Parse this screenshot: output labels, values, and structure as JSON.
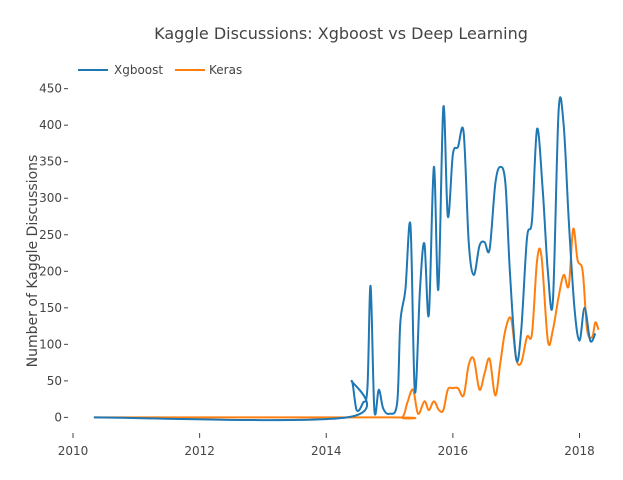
{
  "chart_data": {
    "type": "line",
    "title": "Kaggle Discussions: Xgboost vs Deep Learning",
    "xlabel": "",
    "ylabel": "Number of Kaggle Discussions",
    "xlim": [
      2010.0,
      2018.45
    ],
    "ylim": [
      -20,
      455
    ],
    "xticks": [
      2010,
      2012,
      2014,
      2016,
      2018
    ],
    "yticks": [
      0,
      50,
      100,
      150,
      200,
      250,
      300,
      350,
      400,
      450
    ],
    "grid": false,
    "legend": "top-left",
    "series": [
      {
        "name": "Xgboost",
        "color": "#1f77b4",
        "points": [
          [
            2010.33,
            0
          ],
          [
            2014.33,
            0
          ],
          [
            2014.4,
            50
          ],
          [
            2014.48,
            10
          ],
          [
            2014.58,
            20
          ],
          [
            2014.65,
            40
          ],
          [
            2014.7,
            180
          ],
          [
            2014.76,
            10
          ],
          [
            2014.83,
            38
          ],
          [
            2014.9,
            12
          ],
          [
            2015.0,
            5
          ],
          [
            2015.12,
            20
          ],
          [
            2015.17,
            130
          ],
          [
            2015.25,
            175
          ],
          [
            2015.33,
            263
          ],
          [
            2015.4,
            35
          ],
          [
            2015.48,
            175
          ],
          [
            2015.55,
            238
          ],
          [
            2015.62,
            140
          ],
          [
            2015.7,
            343
          ],
          [
            2015.77,
            175
          ],
          [
            2015.85,
            425
          ],
          [
            2015.92,
            275
          ],
          [
            2016.0,
            360
          ],
          [
            2016.08,
            370
          ],
          [
            2016.17,
            390
          ],
          [
            2016.25,
            240
          ],
          [
            2016.33,
            195
          ],
          [
            2016.42,
            235
          ],
          [
            2016.5,
            240
          ],
          [
            2016.58,
            230
          ],
          [
            2016.67,
            320
          ],
          [
            2016.75,
            343
          ],
          [
            2016.83,
            320
          ],
          [
            2016.9,
            200
          ],
          [
            2017.0,
            80
          ],
          [
            2017.08,
            120
          ],
          [
            2017.17,
            245
          ],
          [
            2017.25,
            270
          ],
          [
            2017.33,
            395
          ],
          [
            2017.42,
            310
          ],
          [
            2017.5,
            200
          ],
          [
            2017.58,
            160
          ],
          [
            2017.67,
            420
          ],
          [
            2017.75,
            400
          ],
          [
            2017.83,
            270
          ],
          [
            2017.92,
            150
          ],
          [
            2018.0,
            105
          ],
          [
            2018.08,
            150
          ],
          [
            2018.17,
            105
          ],
          [
            2018.25,
            115
          ]
        ]
      },
      {
        "name": "Keras",
        "color": "#ff7f0e",
        "points": [
          [
            2010.33,
            0
          ],
          [
            2015.0,
            0
          ],
          [
            2015.2,
            0
          ],
          [
            2015.28,
            20
          ],
          [
            2015.37,
            38
          ],
          [
            2015.45,
            5
          ],
          [
            2015.55,
            22
          ],
          [
            2015.62,
            10
          ],
          [
            2015.7,
            22
          ],
          [
            2015.78,
            10
          ],
          [
            2015.85,
            10
          ],
          [
            2015.92,
            38
          ],
          [
            2016.0,
            40
          ],
          [
            2016.08,
            40
          ],
          [
            2016.17,
            30
          ],
          [
            2016.25,
            72
          ],
          [
            2016.33,
            80
          ],
          [
            2016.42,
            38
          ],
          [
            2016.5,
            60
          ],
          [
            2016.58,
            80
          ],
          [
            2016.67,
            30
          ],
          [
            2016.75,
            75
          ],
          [
            2016.83,
            120
          ],
          [
            2016.92,
            135
          ],
          [
            2017.0,
            80
          ],
          [
            2017.08,
            75
          ],
          [
            2017.17,
            110
          ],
          [
            2017.25,
            115
          ],
          [
            2017.33,
            215
          ],
          [
            2017.4,
            220
          ],
          [
            2017.5,
            105
          ],
          [
            2017.58,
            120
          ],
          [
            2017.67,
            165
          ],
          [
            2017.75,
            195
          ],
          [
            2017.83,
            180
          ],
          [
            2017.9,
            258
          ],
          [
            2017.97,
            215
          ],
          [
            2018.05,
            200
          ],
          [
            2018.12,
            120
          ],
          [
            2018.2,
            110
          ],
          [
            2018.25,
            130
          ],
          [
            2018.3,
            120
          ]
        ]
      }
    ]
  }
}
